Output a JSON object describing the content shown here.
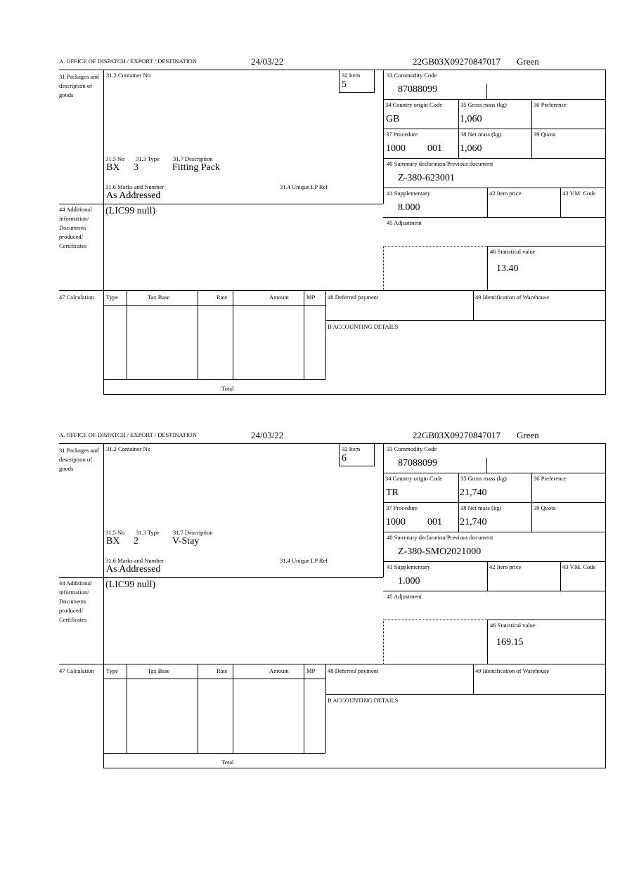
{
  "labels": {
    "office": "A.  OFFICE OF DISPATCH / EXPORT / DESTINATION",
    "packages": "31 Packages and description of goods",
    "container_no": "31.2 Container No",
    "item": "32 Item",
    "commodity_code": "33 Commodity Code",
    "country_origin": "34 Country origin Code",
    "gross_mass": "35 Gross mass (kg)",
    "preference": "36 Preference",
    "procedure": "37 Procedure",
    "net_mass": "38 Net mass (kg)",
    "quota": "39 Quota",
    "summary_declaration": "40 Summary declaration/Previous document",
    "supplementary": "41 Supplementary",
    "item_price": "42 Item price",
    "vm_code": "43 V.M. Code",
    "adjustment": "45 Adjustment",
    "statistical_value": "46 Statistical value",
    "pkg_no": "31.5 No",
    "pkg_type": "31.3 Type",
    "pkg_description": "31.7 Description",
    "marks_numbers": "31.6 Marks and Number",
    "unique_lp_ref": "31.4 Unique LP Ref",
    "additional_info": "44 Additional information/ Documents produced/ Certificates",
    "calculation": "47 Calculation",
    "calc_type": "Type",
    "calc_tax_base": "Tax Base",
    "calc_rate": "Rate",
    "calc_amount": "Amount",
    "calc_mp": "MP",
    "deferred_payment": "48 Deferred payment",
    "warehouse_id": "49 Identification of Warehouse",
    "accounting_details": "B ACCOUNTING DETAILS",
    "total": "Total"
  },
  "forms": [
    {
      "date": "24/03/22",
      "reference": "22GB03X09270847017",
      "route": "Green",
      "item": "5",
      "commodity_code": "87088099",
      "country_origin": "GB",
      "gross_mass": "1,060",
      "procedure_code": "1000",
      "procedure_sub": "001",
      "net_mass": "1,060",
      "previous_document": "Z-380-623001",
      "supplementary": "8.000",
      "statistical_value": "13.40",
      "pkg_no": "BX",
      "pkg_type": "3",
      "pkg_description": "Fitting Pack",
      "marks": "As Addressed",
      "additional_info": "(LIC99 null)"
    },
    {
      "date": "24/03/22",
      "reference": "22GB03X09270847017",
      "route": "Green",
      "item": "6",
      "commodity_code": "87088099",
      "country_origin": "TR",
      "gross_mass": "21,740",
      "procedure_code": "1000",
      "procedure_sub": "001",
      "net_mass": "21,740",
      "previous_document": "Z-380-SMO2021000",
      "supplementary": "1.000",
      "statistical_value": "169.15",
      "pkg_no": "BX",
      "pkg_type": "2",
      "pkg_description": "V-Stay",
      "marks": "As Addressed",
      "additional_info": "(LIC99 null)"
    }
  ]
}
